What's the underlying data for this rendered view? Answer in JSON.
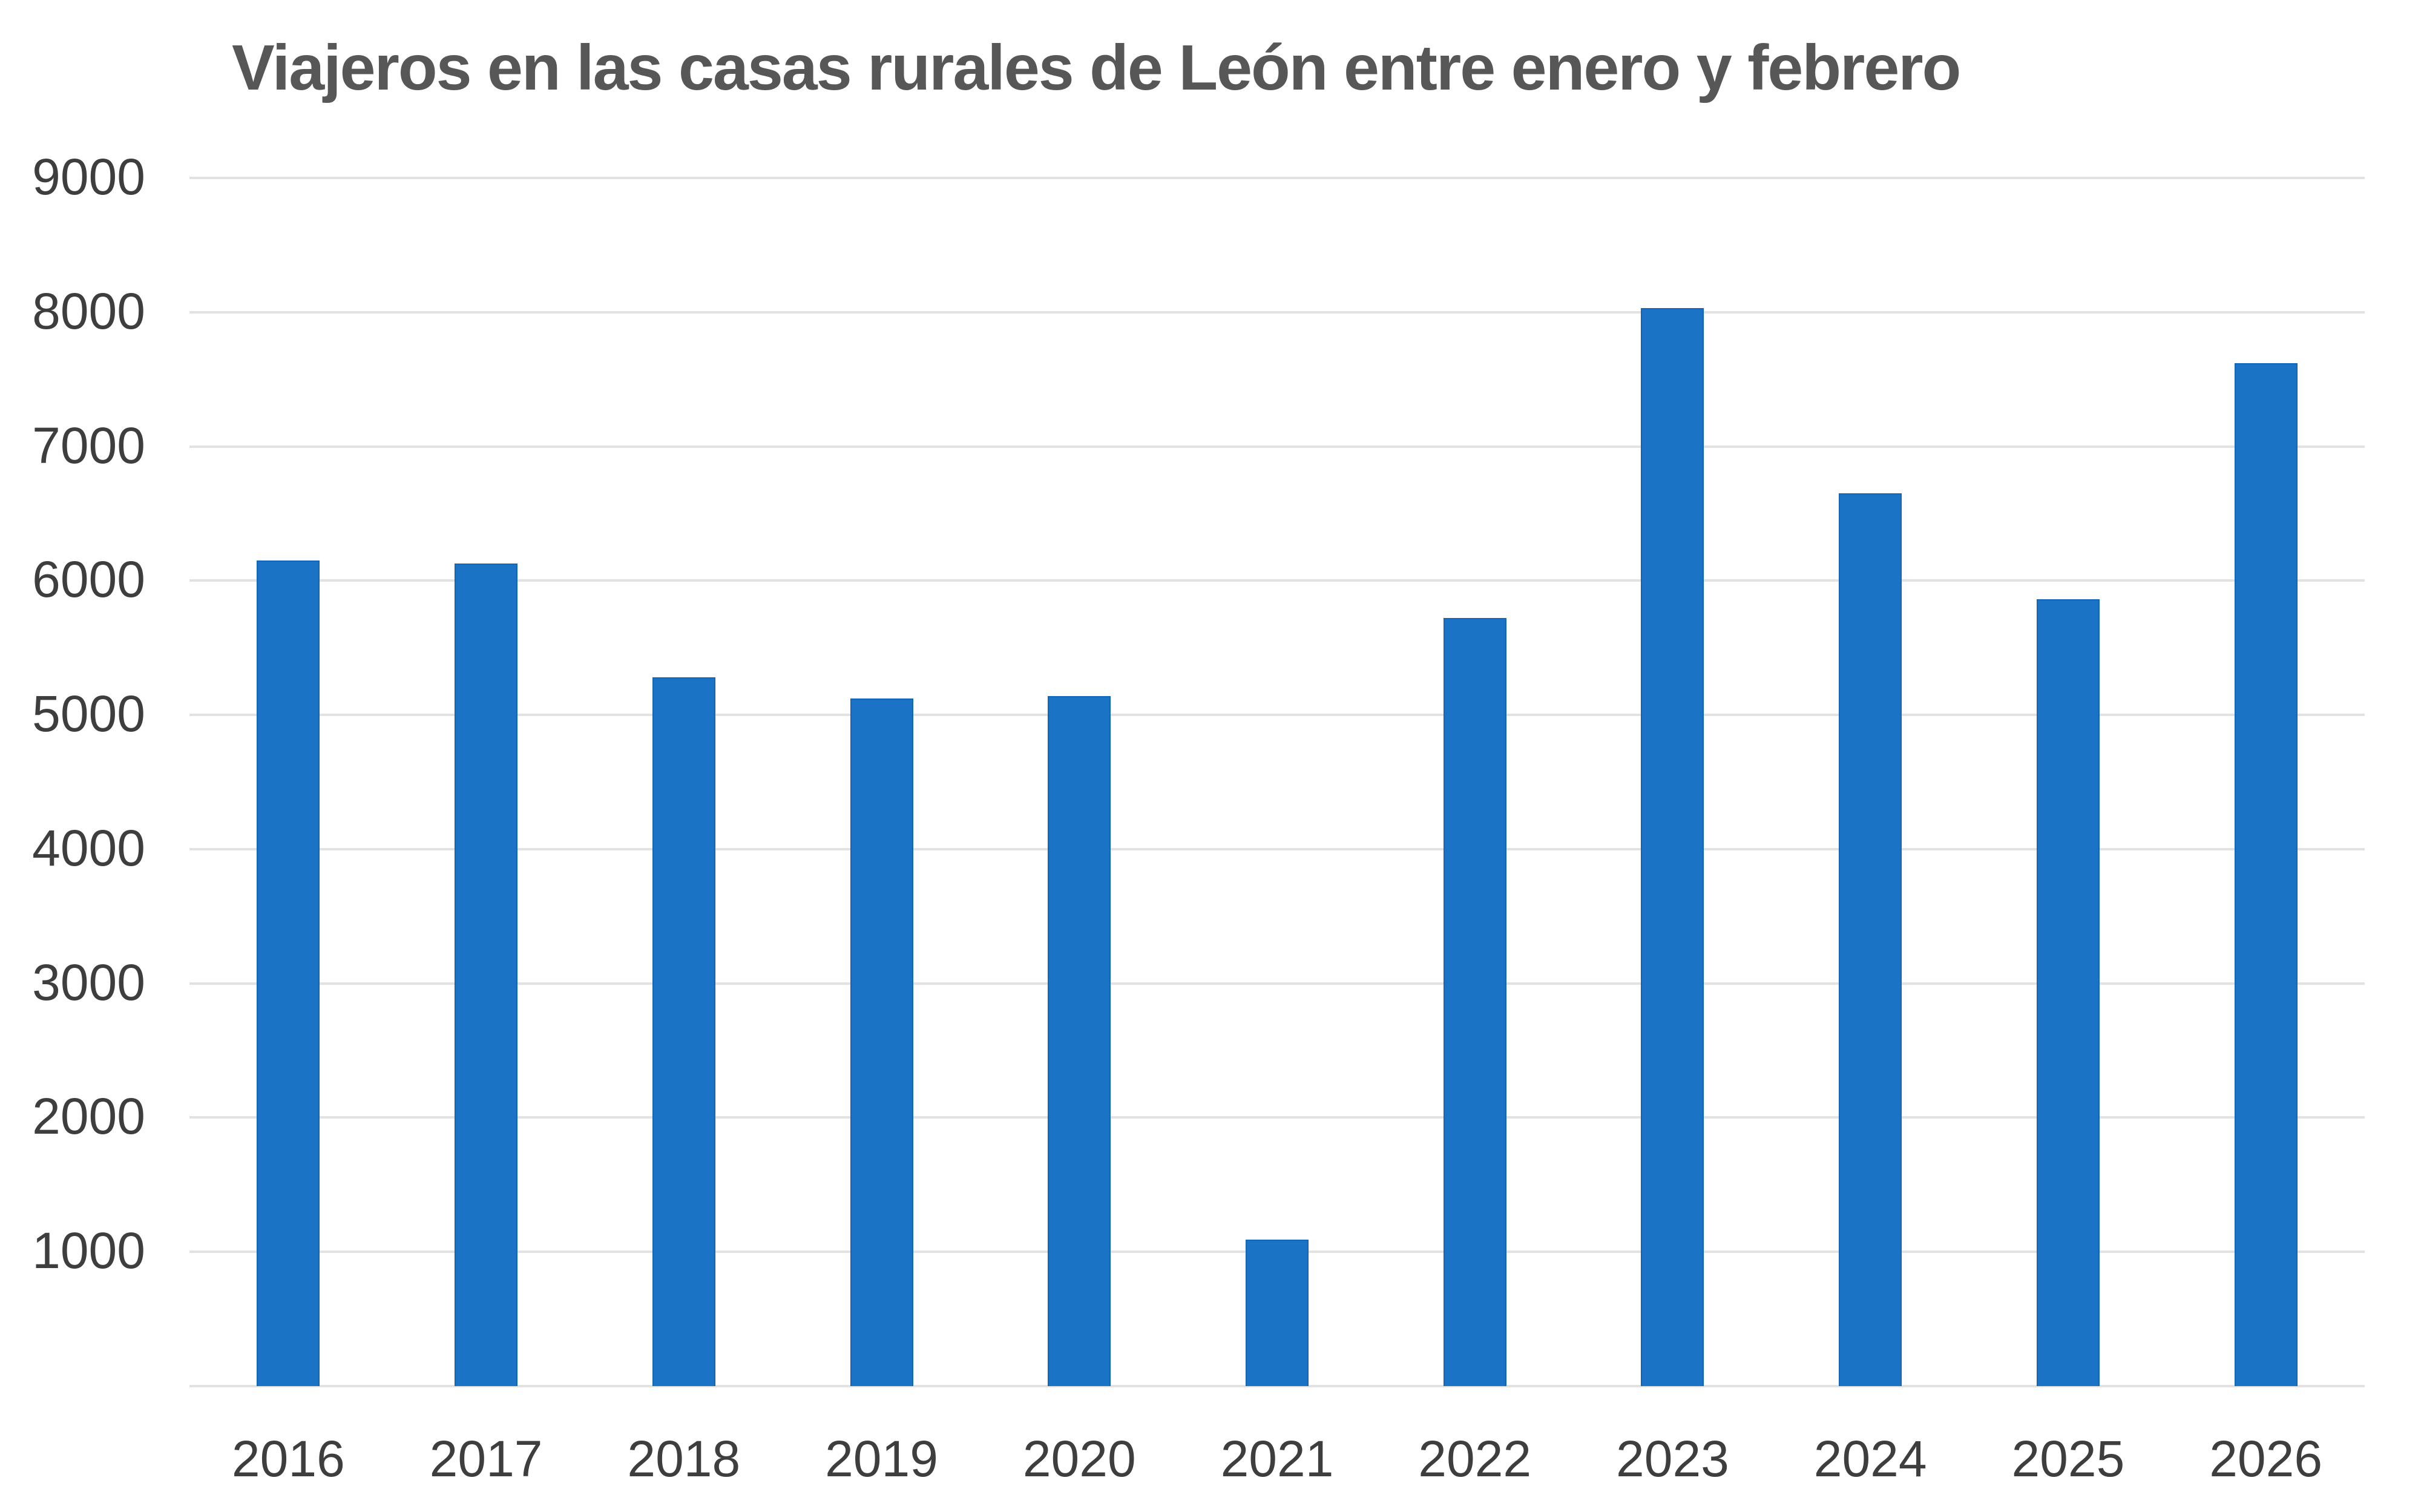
{
  "chart_data": {
    "type": "bar",
    "title": "Viajeros en las casas rurales de León entre enero y febrero",
    "categories": [
      "2016",
      "2017",
      "2018",
      "2019",
      "2020",
      "2021",
      "2022",
      "2023",
      "2024",
      "2025",
      "2026"
    ],
    "values": [
      6150,
      6130,
      5280,
      5120,
      5140,
      1090,
      5720,
      8030,
      6650,
      5860,
      7620
    ],
    "xlabel": "",
    "ylabel": "",
    "ylim": [
      0,
      9000
    ],
    "ytick_interval": 1000,
    "yticks": [
      9000,
      8000,
      7000,
      6000,
      5000,
      4000,
      3000,
      2000,
      1000
    ],
    "gridline_values": [
      9000,
      8000,
      7000,
      6000,
      5000,
      4000,
      3000,
      2000,
      1000,
      0
    ],
    "grid": "horizontal",
    "legend_position": "none",
    "bar_color": "#1B73C6",
    "bar_edge_color": "#1265B8",
    "grid_color": "#E2E2E2",
    "tick_label_color": "#3E3E3E",
    "title_color": "#575757",
    "background_color": "#FFFFFF"
  }
}
